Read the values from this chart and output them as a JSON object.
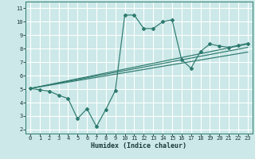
{
  "xlabel": "Humidex (Indice chaleur)",
  "ylabel": "",
  "x": [
    0,
    1,
    2,
    3,
    4,
    5,
    6,
    7,
    8,
    9,
    10,
    11,
    12,
    13,
    14,
    15,
    16,
    17,
    18,
    19,
    20,
    21,
    22,
    23
  ],
  "y_main": [
    5.05,
    4.95,
    4.85,
    4.55,
    4.3,
    2.8,
    3.55,
    2.22,
    3.5,
    4.9,
    10.5,
    10.5,
    9.5,
    9.5,
    10.0,
    10.15,
    7.2,
    6.55,
    7.8,
    8.35,
    8.2,
    8.1,
    8.25,
    8.4
  ],
  "line_color": "#2d7a6e",
  "bg_color": "#cce8e8",
  "grid_color": "#ffffff",
  "xlim": [
    -0.5,
    23.5
  ],
  "ylim": [
    1.7,
    11.5
  ],
  "xticks": [
    0,
    1,
    2,
    3,
    4,
    5,
    6,
    7,
    8,
    9,
    10,
    11,
    12,
    13,
    14,
    15,
    16,
    17,
    18,
    19,
    20,
    21,
    22,
    23
  ],
  "yticks": [
    2,
    3,
    4,
    5,
    6,
    7,
    8,
    9,
    10,
    11
  ],
  "reg_lines": [
    {
      "x0": 0,
      "y0": 5.05,
      "x1": 23,
      "y1": 8.35
    },
    {
      "x0": 0,
      "y0": 5.05,
      "x1": 23,
      "y1": 8.1
    },
    {
      "x0": 0,
      "y0": 5.05,
      "x1": 23,
      "y1": 7.75
    }
  ]
}
